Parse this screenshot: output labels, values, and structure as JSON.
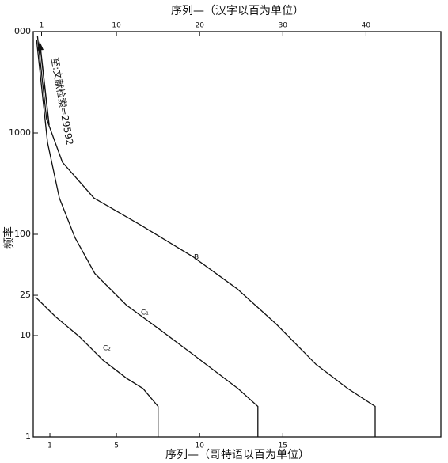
{
  "chart_data": {
    "type": "line",
    "x_label": "序列—（哥特语以百为单位）",
    "x2_label": "序列—（汉字以百为单位）",
    "y_label": "频率",
    "annotation": "至:文献检索=29592",
    "log_y": true,
    "xlim": [
      0,
      24.5
    ],
    "xticks": [
      1,
      5,
      10,
      15
    ],
    "x2lim": [
      0,
      49
    ],
    "x2ticks": [
      1,
      10,
      20,
      30,
      40
    ],
    "ylim": [
      1,
      10000
    ],
    "yticks": [
      {
        "value": 10000,
        "label": "000"
      },
      1000,
      100,
      25,
      10,
      1
    ],
    "series": [
      {
        "name": "B",
        "color": "#111111",
        "axis": "x2",
        "x": [
          0.5,
          1.6,
          3.5,
          7.3,
          13,
          19.2,
          24.5,
          29.2,
          34,
          37.8,
          41.1,
          41.1
        ],
        "values": [
          9100,
          1380,
          515,
          228,
          122,
          60,
          29,
          13,
          5.2,
          3,
          2,
          1
        ]
      },
      {
        "name": "C₁",
        "color": "#111111",
        "x": [
          0.2,
          0.86,
          1.57,
          2.5,
          3.7,
          5.6,
          7.5,
          9.4,
          11.3,
          12.3,
          13.5,
          13.5
        ],
        "values": [
          8300,
          800,
          228,
          93,
          41,
          20,
          11.8,
          6.9,
          4,
          3,
          2,
          1
        ]
      },
      {
        "name": "C₂",
        "color": "#111111",
        "x": [
          0.14,
          1.33,
          2.76,
          4.2,
          5.6,
          6.6,
          7.5,
          7.5
        ],
        "values": [
          24,
          15.4,
          9.8,
          5.7,
          3.8,
          3,
          2,
          1
        ]
      }
    ]
  }
}
